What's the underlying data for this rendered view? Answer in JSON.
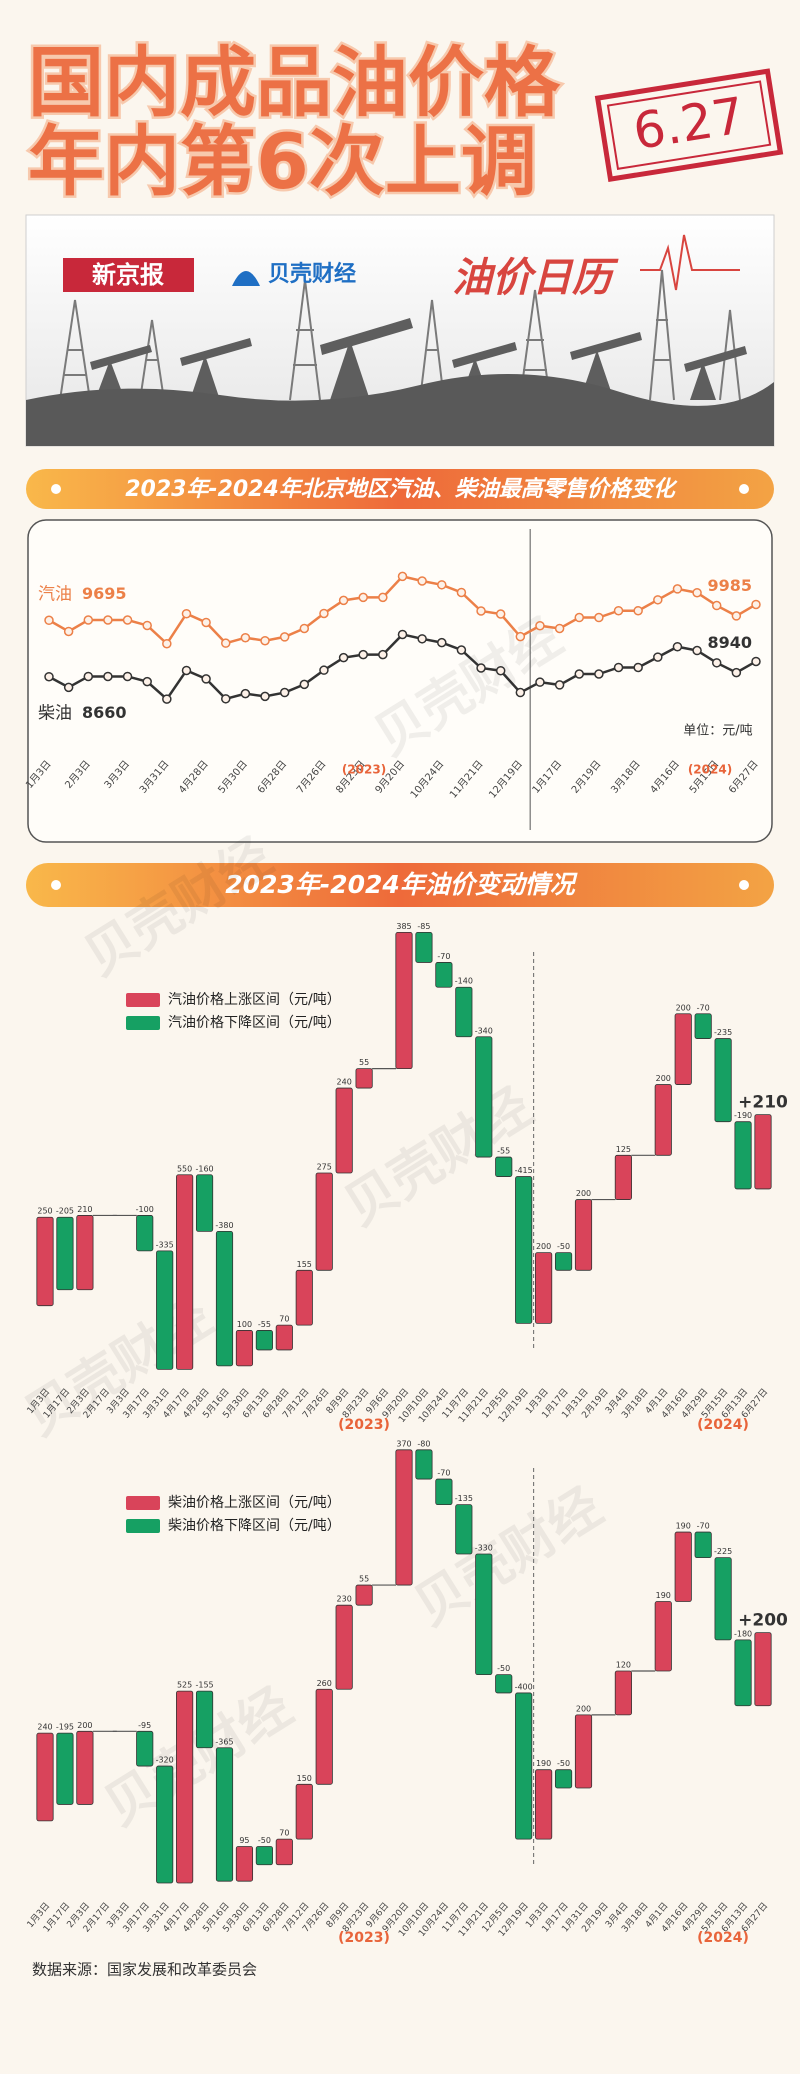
{
  "header": {
    "title": [
      "国内成品油价格",
      "年内第6次上调"
    ],
    "stamp": "6.27"
  },
  "banner": {
    "logo_1": "新京报",
    "logo_2": "贝壳财经",
    "tagline": "油价日历"
  },
  "watermark": "贝壳财经",
  "source": "数据来源：国家发展和改革委员会",
  "chart_data": [
    {
      "type": "line",
      "title": "2023年-2024年北京地区汽油、柴油最高零售价格变化",
      "categories": [
        "1月3日",
        null,
        "2月3日",
        null,
        "3月3日",
        null,
        "3月31日",
        null,
        "4月28日",
        null,
        "5月30日",
        null,
        "6月28日",
        null,
        "7月26日",
        null,
        "8月23日",
        null,
        "9月20日",
        null,
        "10月24日",
        null,
        "11月21日",
        null,
        "12月19日",
        null,
        "1月17日",
        null,
        "2月19日",
        null,
        "3月18日",
        null,
        "4月16日",
        null,
        "5月15日",
        null,
        "6月27日"
      ],
      "series": [
        {
          "name": "汽油",
          "color": "#ec8048",
          "values": [
            9695,
            9490,
            9700,
            9700,
            9700,
            9600,
            9265,
            9815,
            9655,
            9275,
            9375,
            9320,
            9390,
            9545,
            9820,
            10060,
            10115,
            10115,
            10500,
            10415,
            10345,
            10205,
            9865,
            9810,
            9395,
            9595,
            9545,
            9745,
            9745,
            9870,
            9870,
            10070,
            10270,
            10200,
            9965,
            9775,
            9985
          ]
        },
        {
          "name": "柴油",
          "color": "#333333",
          "values": [
            8660,
            8465,
            8665,
            8665,
            8665,
            8570,
            8250,
            8775,
            8620,
            8255,
            8350,
            8300,
            8370,
            8520,
            8780,
            9010,
            9065,
            9065,
            9435,
            9355,
            9285,
            9150,
            8820,
            8770,
            8370,
            8560,
            8510,
            8710,
            8710,
            8830,
            8830,
            9020,
            9210,
            9140,
            8915,
            8735,
            8940
          ]
        }
      ],
      "ylim": [
        7500,
        10800
      ],
      "unit": "单位：元/吨",
      "year_labels": [
        "(2023)",
        "(2024)"
      ]
    },
    {
      "type": "waterfall",
      "title": "2023年-2024年油价变动情况",
      "categories": [
        "1月3日",
        "1月17日",
        "2月3日",
        "2月17日",
        "3月3日",
        "3月17日",
        "3月31日",
        "4月17日",
        "4月28日",
        "5月16日",
        "5月30日",
        "6月13日",
        "6月28日",
        "7月12日",
        "7月26日",
        "8月9日",
        "8月23日",
        "9月6日",
        "9月20日",
        "10月10日",
        "10月24日",
        "11月7日",
        "11月21日",
        "12月5日",
        "12月19日",
        "1月3日",
        "1月17日",
        "1月31日",
        "2月19日",
        "3月4日",
        "3月18日",
        "4月1日",
        "4月16日",
        "4月29日",
        "5月15日",
        "6月13日",
        "6月27日"
      ],
      "values": [
        250,
        -205,
        210,
        0,
        0,
        -100,
        -335,
        550,
        -160,
        -380,
        100,
        -55,
        70,
        155,
        275,
        240,
        55,
        0,
        385,
        -85,
        -70,
        -140,
        -340,
        -55,
        -415,
        200,
        -50,
        200,
        0,
        125,
        0,
        200,
        200,
        -70,
        -235,
        -190,
        210
      ],
      "value_labels": [
        "250",
        "-205",
        "210",
        null,
        null,
        "-100",
        "-335",
        "550",
        "-160",
        "-380",
        "100",
        "-55",
        "70",
        "155",
        "275",
        "240",
        "55",
        null,
        "385",
        "-85",
        "-70",
        "-140",
        "-340",
        "-55",
        "-415",
        "200",
        "-50",
        "200",
        null,
        "125",
        null,
        "200",
        "200",
        "-70",
        "-235",
        "-190",
        "+210"
      ],
      "legend": [
        {
          "name": "汽油价格上涨区间（元/吨）",
          "color": "#d9445a"
        },
        {
          "name": "汽油价格下降区间（元/吨）",
          "color": "#16a063"
        }
      ],
      "ylim": [
        -210,
        1090
      ],
      "year_labels": [
        "(2023)",
        "(2024)"
      ]
    },
    {
      "type": "waterfall",
      "categories": [
        "1月3日",
        "1月17日",
        "2月3日",
        "2月17日",
        "3月3日",
        "3月17日",
        "3月31日",
        "4月17日",
        "4月28日",
        "5月16日",
        "5月30日",
        "6月13日",
        "6月28日",
        "7月12日",
        "7月26日",
        "8月9日",
        "8月23日",
        "9月6日",
        "9月20日",
        "10月10日",
        "10月24日",
        "11月7日",
        "11月21日",
        "12月5日",
        "12月19日",
        "1月3日",
        "1月17日",
        "1月31日",
        "2月19日",
        "3月4日",
        "3月18日",
        "4月1日",
        "4月16日",
        "4月29日",
        "5月15日",
        "6月13日",
        "6月27日"
      ],
      "values": [
        240,
        -195,
        200,
        0,
        0,
        -95,
        -320,
        525,
        -155,
        -365,
        95,
        -50,
        70,
        150,
        260,
        230,
        55,
        0,
        370,
        -80,
        -70,
        -135,
        -330,
        -50,
        -400,
        190,
        -50,
        200,
        0,
        120,
        0,
        190,
        190,
        -70,
        -225,
        -180,
        200
      ],
      "value_labels": [
        "240",
        "-195",
        "200",
        null,
        null,
        "-95",
        "-320",
        "525",
        "-155",
        "-365",
        "95",
        "-50",
        "70",
        "150",
        "260",
        "230",
        "55",
        null,
        "370",
        "-80",
        "-70",
        "-135",
        "-330",
        "-50",
        "-400",
        "190",
        "-50",
        "200",
        null,
        "120",
        null,
        "190",
        "190",
        "-70",
        "-225",
        "-180",
        "+200"
      ],
      "legend": [
        {
          "name": "柴油价格上涨区间（元/吨）",
          "color": "#d9445a"
        },
        {
          "name": "柴油价格下降区间（元/吨）",
          "color": "#16a063"
        }
      ],
      "ylim": [
        -200,
        1050
      ],
      "year_labels": [
        "(2023)",
        "(2024)"
      ]
    }
  ]
}
